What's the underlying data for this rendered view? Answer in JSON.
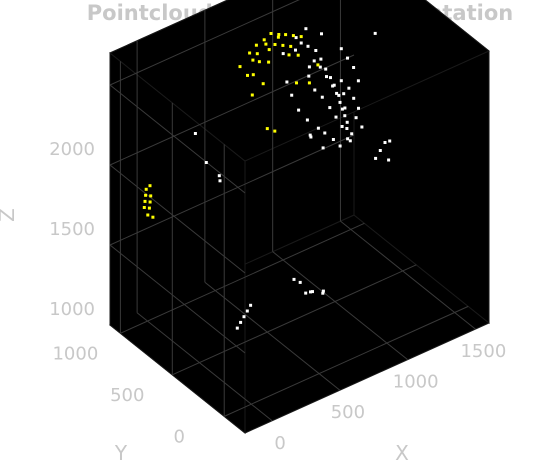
{
  "chart_data": {
    "type": "scatter",
    "title": "Pointcloud from My Implementation",
    "xlabel": "X",
    "ylabel": "Y",
    "zlabel": "Z",
    "xlim": [
      -200,
      1600
    ],
    "ylim": [
      -200,
      1100
    ],
    "zlim": [
      500,
      2200
    ],
    "xticks": [
      "0",
      "500",
      "1000",
      "1500"
    ],
    "yticks": [
      "0",
      "500",
      "1000"
    ],
    "zticks": [
      "1000",
      "1500",
      "2000"
    ],
    "grid": true,
    "background": "#000000",
    "series": [
      {
        "color": "#ffffff",
        "points": [
          [
            200,
            800,
            1700
          ],
          [
            250,
            760,
            1520
          ],
          [
            300,
            700,
            1450
          ],
          [
            320,
            720,
            1400
          ],
          [
            80,
            240,
            820
          ],
          [
            120,
            260,
            830
          ],
          [
            160,
            280,
            840
          ],
          [
            200,
            300,
            850
          ],
          [
            240,
            320,
            860
          ],
          [
            600,
            260,
            830
          ],
          [
            620,
            240,
            840
          ],
          [
            650,
            260,
            820
          ],
          [
            680,
            200,
            830
          ],
          [
            700,
            220,
            825
          ],
          [
            560,
            320,
            900
          ],
          [
            590,
            300,
            880
          ],
          [
            1300,
            500,
            1280
          ],
          [
            1350,
            520,
            1300
          ],
          [
            1400,
            540,
            1320
          ],
          [
            1450,
            560,
            1300
          ],
          [
            1380,
            480,
            1250
          ],
          [
            1450,
            700,
            1900
          ],
          [
            1200,
            700,
            1700
          ],
          [
            1210,
            690,
            1620
          ],
          [
            900,
            750,
            1980
          ],
          [
            950,
            760,
            2000
          ],
          [
            1000,
            760,
            1960
          ],
          [
            1050,
            750,
            1920
          ],
          [
            1080,
            740,
            1860
          ],
          [
            1100,
            720,
            1800
          ],
          [
            1120,
            700,
            1750
          ],
          [
            1140,
            690,
            1700
          ],
          [
            1150,
            680,
            1650
          ],
          [
            1160,
            660,
            1600
          ],
          [
            1170,
            650,
            1560
          ],
          [
            1180,
            640,
            1520
          ],
          [
            1190,
            630,
            1480
          ],
          [
            1180,
            620,
            1450
          ],
          [
            1200,
            600,
            1420
          ],
          [
            1150,
            600,
            1600
          ],
          [
            1120,
            620,
            1680
          ],
          [
            1090,
            640,
            1740
          ],
          [
            1060,
            660,
            1800
          ],
          [
            1030,
            680,
            1860
          ],
          [
            1000,
            700,
            1900
          ],
          [
            980,
            720,
            1860
          ],
          [
            960,
            700,
            1820
          ],
          [
            1020,
            720,
            1700
          ],
          [
            1060,
            700,
            1650
          ],
          [
            1100,
            680,
            1580
          ],
          [
            1130,
            660,
            1520
          ],
          [
            1160,
            640,
            1460
          ],
          [
            1000,
            660,
            1500
          ],
          [
            1040,
            650,
            1460
          ],
          [
            950,
            700,
            1550
          ],
          [
            900,
            720,
            1620
          ],
          [
            880,
            760,
            1700
          ],
          [
            860,
            780,
            1780
          ],
          [
            1250,
            600,
            1560
          ],
          [
            1230,
            620,
            1620
          ],
          [
            1210,
            640,
            1680
          ],
          [
            1240,
            610,
            1500
          ],
          [
            1260,
            580,
            1450
          ],
          [
            1170,
            600,
            1400
          ],
          [
            1020,
            640,
            1380
          ],
          [
            1080,
            620,
            1420
          ],
          [
            960,
            680,
            1450
          ],
          [
            940,
            660,
            1480
          ],
          [
            1130,
            620,
            1360
          ],
          [
            1190,
            600,
            1380
          ],
          [
            1000,
            780,
            2060
          ],
          [
            1100,
            760,
            2000
          ],
          [
            920,
            770,
            2040
          ],
          [
            840,
            790,
            1960
          ],
          [
            1200,
            700,
            1900
          ],
          [
            1230,
            680,
            1840
          ],
          [
            1260,
            660,
            1780
          ],
          [
            1280,
            640,
            1700
          ]
        ]
      },
      {
        "color": "#ffff00",
        "points": [
          [
            -100,
            900,
            1300
          ],
          [
            -80,
            920,
            1320
          ],
          [
            -60,
            940,
            1340
          ],
          [
            -40,
            960,
            1360
          ],
          [
            -90,
            880,
            1260
          ],
          [
            -70,
            890,
            1290
          ],
          [
            -50,
            910,
            1310
          ],
          [
            -30,
            930,
            1330
          ],
          [
            -20,
            950,
            1380
          ],
          [
            -60,
            870,
            1240
          ],
          [
            600,
            800,
            2050
          ],
          [
            650,
            800,
            2080
          ],
          [
            700,
            790,
            2100
          ],
          [
            750,
            790,
            2120
          ],
          [
            800,
            780,
            2100
          ],
          [
            850,
            780,
            2080
          ],
          [
            900,
            770,
            2060
          ],
          [
            950,
            760,
            2040
          ],
          [
            720,
            800,
            2060
          ],
          [
            780,
            790,
            2040
          ],
          [
            830,
            780,
            2020
          ],
          [
            880,
            770,
            2000
          ],
          [
            640,
            820,
            1980
          ],
          [
            680,
            810,
            1960
          ],
          [
            740,
            800,
            1940
          ],
          [
            860,
            760,
            1960
          ],
          [
            920,
            750,
            1940
          ],
          [
            600,
            820,
            1900
          ],
          [
            650,
            830,
            1880
          ],
          [
            700,
            800,
            1820
          ],
          [
            900,
            740,
            1780
          ],
          [
            980,
            720,
            1760
          ],
          [
            760,
            820,
            2000
          ],
          [
            820,
            810,
            2060
          ],
          [
            700,
            760,
            1560
          ],
          [
            740,
            740,
            1540
          ],
          [
            1050,
            730,
            1840
          ],
          [
            680,
            830,
            2000
          ],
          [
            560,
            840,
            1960
          ],
          [
            620,
            800,
            1780
          ]
        ]
      }
    ]
  }
}
